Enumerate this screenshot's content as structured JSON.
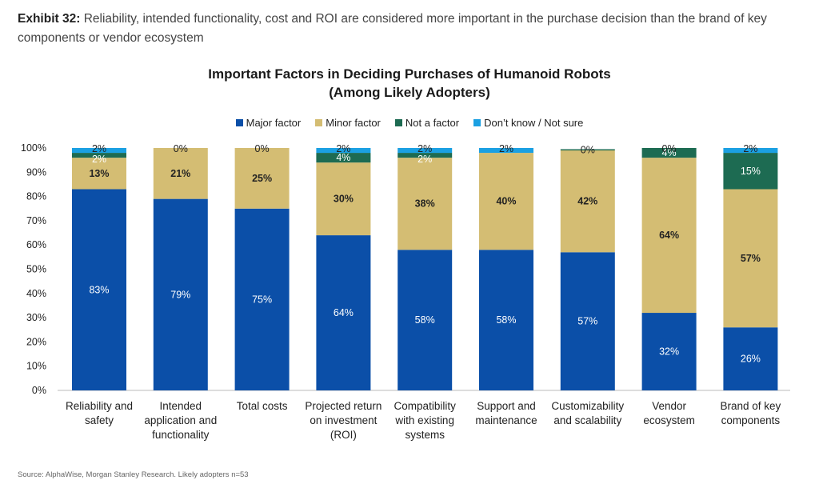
{
  "exhibit": {
    "label": "Exhibit 32:",
    "text": "Reliability, intended functionality, cost and ROI are considered more important in the purchase decision than the brand of key components or vendor ecosystem"
  },
  "source": "Source: AlphaWise, Morgan Stanley Research. Likely adopters n=53",
  "colors": {
    "major": "#0b4fa8",
    "minor": "#d4bd73",
    "not": "#1d6b52",
    "dontknow": "#1ba0e2"
  },
  "chart_data": {
    "type": "bar",
    "stacked": true,
    "title_line1": "Important Factors in Deciding Purchases of Humanoid Robots",
    "title_line2": "(Among Likely Adopters)",
    "ylim": [
      0,
      100
    ],
    "yticks": [
      "0%",
      "10%",
      "20%",
      "30%",
      "40%",
      "50%",
      "60%",
      "70%",
      "80%",
      "90%",
      "100%"
    ],
    "legend_position": "top",
    "categories": [
      [
        "Reliability and",
        "safety"
      ],
      [
        "Intended",
        "application and",
        "functionality"
      ],
      [
        "Total costs"
      ],
      [
        "Projected return",
        "on investment",
        "(ROI)"
      ],
      [
        "Compatibility",
        "with existing",
        "systems"
      ],
      [
        "Support and",
        "maintenance"
      ],
      [
        "Customizability",
        "and scalability"
      ],
      [
        "Vendor",
        "ecosystem"
      ],
      [
        "Brand of key",
        "components"
      ]
    ],
    "series": [
      {
        "name": "Major factor",
        "color_key": "major",
        "values": [
          83,
          79,
          75,
          64,
          58,
          58,
          57,
          32,
          26
        ],
        "labels": [
          "83%",
          "79%",
          "75%",
          "64%",
          "58%",
          "58%",
          "57%",
          "32%",
          "26%"
        ]
      },
      {
        "name": "Minor factor",
        "color_key": "minor",
        "values": [
          13,
          21,
          25,
          30,
          38,
          40,
          42,
          64,
          57
        ],
        "labels": [
          "13%",
          "21%",
          "25%",
          "30%",
          "38%",
          "40%",
          "42%",
          "64%",
          "57%"
        ]
      },
      {
        "name": "Not a factor",
        "color_key": "not",
        "values": [
          2,
          0,
          0,
          4,
          2,
          0,
          0.5,
          4,
          15
        ],
        "labels": [
          "2%",
          "",
          "",
          "4%",
          "2%",
          "",
          "",
          "4%",
          "15%"
        ]
      },
      {
        "name": "Don’t know / Not sure",
        "color_key": "dontknow",
        "values": [
          2,
          0,
          0,
          2,
          2,
          2,
          0,
          0,
          2
        ],
        "labels": [
          "2%",
          "0%",
          "0%",
          "2%",
          "2%",
          "2%",
          "0%",
          "0%",
          "2%"
        ]
      }
    ]
  }
}
